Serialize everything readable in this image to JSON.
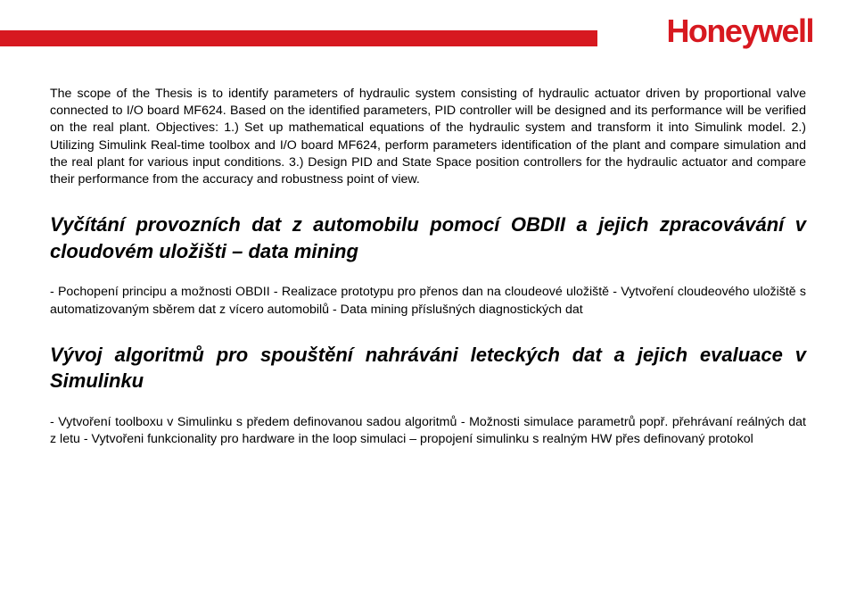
{
  "brand": {
    "logo_text": "Honeywell"
  },
  "colors": {
    "accent": "#d71920",
    "text": "#000000",
    "background": "#ffffff"
  },
  "fonts": {
    "body_size_pt": 14.2,
    "heading_size_pt": 22
  },
  "paragraphs": {
    "p1": "The scope of the Thesis is to identify parameters of hydraulic system consisting of hydraulic actuator driven by proportional valve connected to I/O board MF624. Based on the identified parameters, PID controller will be designed and its performance will be verified on the real plant. Objectives: 1.) Set up mathematical equations of the hydraulic system and transform it into Simulink model. 2.) Utilizing Simulink Real-time toolbox and I/O board MF624, perform parameters identification of the plant and compare simulation and the real plant for various input conditions. 3.) Design PID and State Space position controllers for the hydraulic actuator and compare their performance from the accuracy and robustness point of view.",
    "p2": "- Pochopení principu a možnosti OBDII - Realizace prototypu pro přenos dan na cloudeové uložiště - Vytvoření cloudeového uložiště s automatizovaným sběrem dat z vícero automobilů - Data mining příslušných diagnostických dat",
    "p3": "- Vytvoření toolboxu v Simulinku s předem definovanou sadou algoritmů - Možnosti simulace parametrů popř. přehrávaní reálných dat z letu - Vytvořeni funkcionality pro hardware in the loop simulaci – propojení simulinku s realným HW přes definovaný protokol"
  },
  "headings": {
    "h1": "Vyčítání provozních dat z automobilu pomocí OBDII a jejich zpracovávání v cloudovém uložišti – data mining",
    "h2": "Vývoj algoritmů pro spouštění nahráváni leteckých dat a jejich evaluace v Simulinku"
  }
}
